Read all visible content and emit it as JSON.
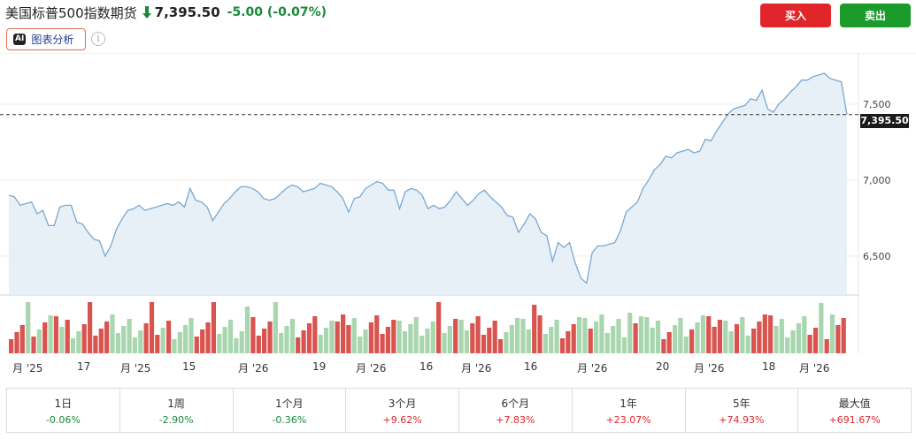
{
  "header": {
    "instrument": "美国标普500指数期货",
    "price": "7,395.50",
    "change": "-5.00 (-0.07%)",
    "direction_icon": "down-arrow-icon"
  },
  "ai": {
    "badge": "AI",
    "label": "图表分析",
    "info_glyph": "i"
  },
  "actions": {
    "buy": "买入",
    "sell": "卖出"
  },
  "chart_data": {
    "type": "area",
    "y_ticks": [
      "7,500",
      "7,000",
      "6,500"
    ],
    "ylim": [
      6330,
      7760
    ],
    "current_price_label": "7,395.50",
    "current_price": 7395.5,
    "x_ticks": [
      "月 '25",
      "17",
      "月 '25",
      "15",
      "月 '26",
      "19",
      "月 '26",
      "16",
      "月 '26",
      "16",
      "月 '26",
      "20",
      "月 '26",
      "18",
      "月 '26"
    ],
    "values": [
      6920,
      6910,
      6860,
      6870,
      6880,
      6810,
      6830,
      6740,
      6740,
      6850,
      6860,
      6860,
      6760,
      6750,
      6700,
      6660,
      6650,
      6560,
      6620,
      6720,
      6780,
      6830,
      6840,
      6860,
      6830,
      6840,
      6850,
      6860,
      6870,
      6860,
      6880,
      6850,
      6960,
      6890,
      6880,
      6850,
      6770,
      6820,
      6870,
      6900,
      6940,
      6970,
      6970,
      6960,
      6940,
      6900,
      6890,
      6900,
      6930,
      6960,
      6980,
      6970,
      6940,
      6950,
      6960,
      6990,
      6980,
      6970,
      6940,
      6900,
      6820,
      6900,
      6910,
      6960,
      6980,
      7000,
      6990,
      6950,
      6950,
      6840,
      6940,
      6960,
      6950,
      6920,
      6840,
      6860,
      6840,
      6850,
      6890,
      6940,
      6900,
      6860,
      6890,
      6930,
      6950,
      6910,
      6880,
      6850,
      6800,
      6790,
      6700,
      6750,
      6810,
      6780,
      6700,
      6680,
      6530,
      6640,
      6610,
      6640,
      6520,
      6430,
      6400,
      6580,
      6620,
      6620,
      6630,
      6640,
      6710,
      6820,
      6850,
      6880,
      6960,
      7010,
      7070,
      7100,
      7150,
      7140,
      7170,
      7180,
      7190,
      7170,
      7180,
      7250,
      7240,
      7300,
      7350,
      7400,
      7430,
      7440,
      7450,
      7490,
      7480,
      7540,
      7430,
      7410,
      7460,
      7490,
      7530,
      7560,
      7600,
      7600,
      7620,
      7630,
      7640,
      7610,
      7600,
      7590,
      7395.5
    ],
    "volume_tones": [
      "red",
      "red",
      "red",
      "green",
      "red",
      "green",
      "red",
      "green",
      "red",
      "green",
      "red",
      "green",
      "green",
      "red",
      "red",
      "red",
      "red",
      "red",
      "green",
      "green",
      "green",
      "green",
      "green",
      "green",
      "red",
      "red",
      "red",
      "green",
      "red",
      "green",
      "green",
      "green",
      "green",
      "red",
      "red",
      "red",
      "red",
      "green",
      "green",
      "green",
      "green",
      "green",
      "green",
      "red",
      "red",
      "red",
      "red",
      "green",
      "green",
      "green",
      "green",
      "red",
      "red",
      "red",
      "red",
      "green",
      "green",
      "green",
      "red",
      "red",
      "red",
      "green",
      "green",
      "green",
      "red",
      "red",
      "red",
      "red",
      "red",
      "green",
      "green",
      "green",
      "green",
      "green",
      "green",
      "green",
      "red",
      "green",
      "green",
      "red",
      "green",
      "green",
      "red",
      "red",
      "red",
      "red",
      "red",
      "red",
      "green",
      "green",
      "green",
      "green",
      "green",
      "red",
      "red",
      "green",
      "green",
      "green",
      "red",
      "red",
      "red",
      "green",
      "green",
      "red",
      "green",
      "green",
      "green",
      "green",
      "green",
      "green",
      "green",
      "red",
      "green",
      "green",
      "green",
      "green",
      "red",
      "red",
      "green",
      "green",
      "green",
      "red",
      "green",
      "green",
      "red",
      "red",
      "red",
      "green",
      "green",
      "red",
      "green",
      "green",
      "red",
      "red",
      "red",
      "red",
      "green",
      "green",
      "green",
      "green",
      "green",
      "green",
      "red",
      "red",
      "green",
      "red",
      "green",
      "red",
      "red"
    ]
  },
  "periods": [
    {
      "label": "1日",
      "value": "-0.06%",
      "sign": "neg"
    },
    {
      "label": "1周",
      "value": "-2.90%",
      "sign": "neg"
    },
    {
      "label": "1个月",
      "value": "-0.36%",
      "sign": "neg"
    },
    {
      "label": "3个月",
      "value": "+9.62%",
      "sign": "pos"
    },
    {
      "label": "6个月",
      "value": "+7.83%",
      "sign": "pos"
    },
    {
      "label": "1年",
      "value": "+23.07%",
      "sign": "pos"
    },
    {
      "label": "5年",
      "value": "+74.93%",
      "sign": "pos"
    },
    {
      "label": "最大值",
      "value": "+691.67%",
      "sign": "pos"
    }
  ],
  "colors": {
    "line": "#7aa7cf",
    "area": "#e8f0f7",
    "vol_up": "#d9534f",
    "vol_down": "#a8d6ae",
    "neg": "#1a8a3a",
    "pos": "#e0262b"
  }
}
